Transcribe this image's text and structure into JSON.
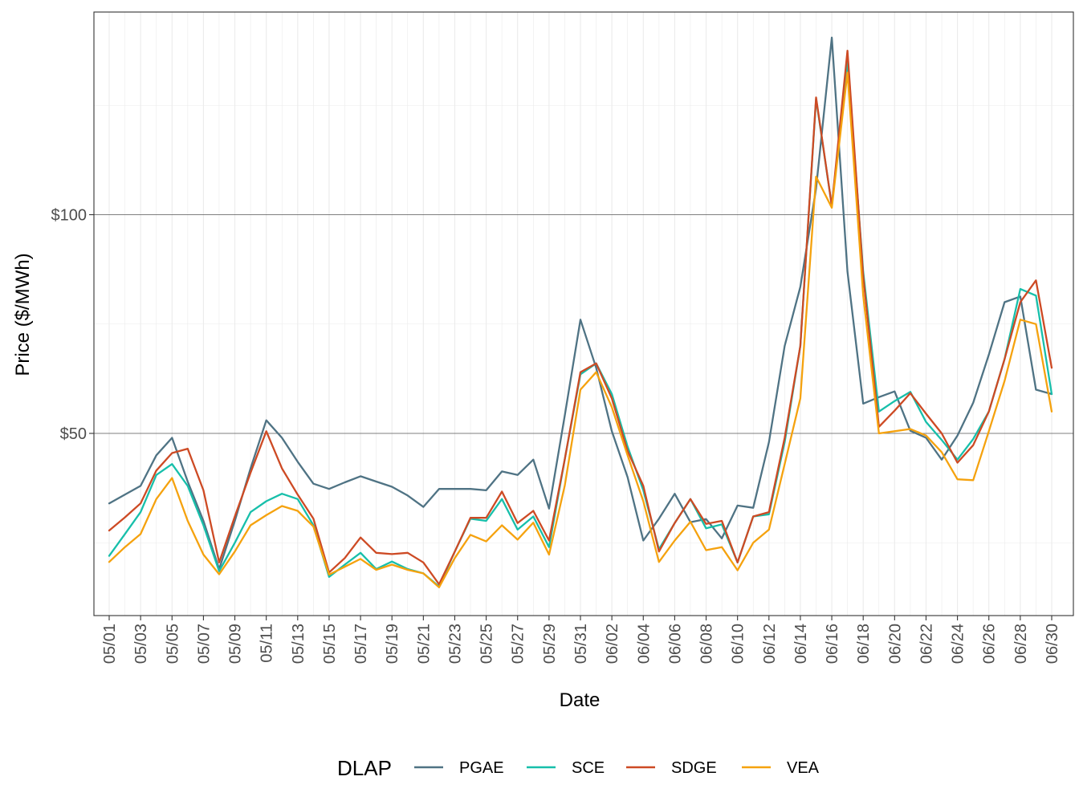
{
  "chart_data": {
    "type": "line",
    "xlabel": "Date",
    "ylabel": "Price ($/MWh)",
    "x": [
      "05/01",
      "05/02",
      "05/03",
      "05/04",
      "05/05",
      "05/06",
      "05/07",
      "05/08",
      "05/09",
      "05/10",
      "05/11",
      "05/12",
      "05/13",
      "05/14",
      "05/15",
      "05/16",
      "05/17",
      "05/18",
      "05/19",
      "05/20",
      "05/21",
      "05/22",
      "05/23",
      "05/24",
      "05/25",
      "05/26",
      "05/27",
      "05/28",
      "05/29",
      "05/30",
      "05/31",
      "06/01",
      "06/02",
      "06/03",
      "06/04",
      "06/05",
      "06/06",
      "06/07",
      "06/08",
      "06/09",
      "06/10",
      "06/11",
      "06/12",
      "06/13",
      "06/14",
      "06/15",
      "06/16",
      "06/17",
      "06/18",
      "06/19",
      "06/20",
      "06/21",
      "06/22",
      "06/23",
      "06/24",
      "06/25",
      "06/26",
      "06/27",
      "06/28",
      "06/29",
      "06/30"
    ],
    "x_tick_labels": [
      "05/01",
      "05/03",
      "05/05",
      "05/07",
      "05/09",
      "05/11",
      "05/13",
      "05/15",
      "05/17",
      "05/19",
      "05/21",
      "05/23",
      "05/25",
      "05/27",
      "05/29",
      "05/31",
      "06/02",
      "06/04",
      "06/06",
      "06/08",
      "06/10",
      "06/12",
      "06/14",
      "06/16",
      "06/18",
      "06/20",
      "06/22",
      "06/24",
      "06/26",
      "06/28",
      "06/30"
    ],
    "y_ticks": [
      50,
      100
    ],
    "y_tick_labels": [
      "$50",
      "$100"
    ],
    "ylim": [
      15,
      152
    ],
    "grid": true,
    "legend": {
      "title": "DLAP",
      "position": "bottom"
    },
    "series": [
      {
        "name": "PGAE",
        "color": "#4f7384",
        "values": [
          34,
          36,
          38,
          45,
          49,
          39,
          30,
          19,
          30,
          42,
          53,
          49,
          43.5,
          38.5,
          37.3,
          38.8,
          40.2,
          39,
          37.8,
          35.8,
          33.2,
          37.3,
          37.3,
          37.3,
          37,
          41.3,
          40.5,
          44,
          32.8,
          54,
          76,
          65,
          50.5,
          40,
          25.5,
          30.5,
          36.2,
          29.7,
          30.4,
          26,
          33.5,
          33,
          48,
          70,
          83.5,
          106,
          140.5,
          87,
          56.8,
          58.3,
          59.6,
          50.6,
          49,
          44,
          49.5,
          57,
          68,
          80,
          81.3,
          60,
          59
        ]
      },
      {
        "name": "SCE",
        "color": "#17bfaa",
        "values": [
          22,
          27,
          32,
          40.5,
          43,
          38,
          29,
          18.5,
          25,
          32,
          34.5,
          36.2,
          35,
          29,
          17.2,
          20,
          22.7,
          19,
          20.7,
          19,
          18,
          15,
          23,
          30.5,
          30,
          35,
          28,
          31,
          24,
          44,
          63.5,
          66,
          59,
          47,
          37,
          23.5,
          29.5,
          35,
          28.3,
          29.2,
          20.5,
          31,
          31.5,
          48,
          70,
          126.5,
          102,
          135,
          87,
          55,
          57.4,
          59.5,
          52.6,
          48.5,
          44,
          48.7,
          55,
          67,
          83,
          81.5,
          59
        ]
      },
      {
        "name": "SDGE",
        "color": "#cd4a24",
        "values": [
          27.8,
          30.8,
          34,
          41.5,
          45.5,
          46.5,
          37,
          20.5,
          31,
          41,
          50.5,
          42,
          36,
          30.5,
          18.2,
          21.5,
          26.2,
          22.7,
          22.4,
          22.7,
          20.5,
          15.5,
          23,
          30.7,
          30.7,
          36.7,
          29.5,
          32.3,
          25.5,
          44,
          64,
          66,
          58,
          46,
          38,
          23,
          29.5,
          35,
          29.3,
          30,
          20.5,
          31,
          32,
          49,
          70,
          126.8,
          102,
          137.5,
          86,
          51.5,
          55.2,
          59.2,
          54.5,
          50,
          43.3,
          47.3,
          55,
          67,
          80,
          85,
          65
        ]
      },
      {
        "name": "VEA",
        "color": "#f5a20e",
        "values": [
          20.6,
          24,
          27,
          35,
          39.8,
          30,
          22.3,
          17.8,
          23,
          29,
          31.3,
          33.4,
          32.3,
          28.7,
          17.7,
          19.5,
          21.3,
          18.8,
          20,
          18.8,
          18,
          14.8,
          21.5,
          26.8,
          25.3,
          29,
          25.7,
          29.6,
          22.3,
          38,
          60,
          64,
          56,
          45,
          34.5,
          20.6,
          25.5,
          29.8,
          23.3,
          24,
          18.7,
          25,
          28,
          43,
          58,
          108.7,
          101.6,
          132.5,
          81.5,
          50,
          50.5,
          51,
          49.5,
          45.7,
          39.5,
          39.3,
          50.5,
          62,
          76,
          75,
          55
        ]
      }
    ]
  }
}
